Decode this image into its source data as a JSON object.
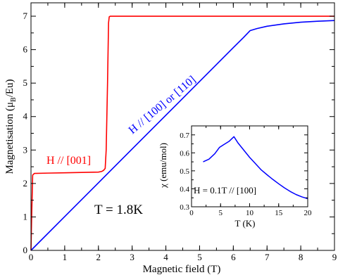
{
  "chart_data": [
    {
      "type": "line",
      "xlabel": "Magnetic field (T)",
      "ylabel_parts": [
        "Magnetisation (μ",
        "B",
        "/Eu)"
      ],
      "xlim": [
        0,
        9
      ],
      "ylim": [
        0,
        7.4
      ],
      "xticks": [
        "0",
        "1",
        "2",
        "3",
        "4",
        "5",
        "6",
        "7",
        "8",
        "9"
      ],
      "yticks": [
        "0",
        "1",
        "2",
        "3",
        "4",
        "5",
        "6",
        "7"
      ],
      "series": [
        {
          "name": "H // [001]",
          "color": "#ff0000",
          "x": [
            0.0,
            0.02,
            0.05,
            0.1,
            0.5,
            1.0,
            1.5,
            2.0,
            2.1,
            2.15,
            2.2,
            2.23,
            2.27,
            2.3,
            2.32,
            2.35,
            2.4,
            3.0,
            4.0,
            5.0,
            6.0,
            7.0,
            8.0,
            9.0
          ],
          "y": [
            0.0,
            1.0,
            2.25,
            2.3,
            2.31,
            2.32,
            2.33,
            2.34,
            2.36,
            2.39,
            2.45,
            3.0,
            5.0,
            6.8,
            6.98,
            7.0,
            7.0,
            7.0,
            7.0,
            7.0,
            7.0,
            7.0,
            7.0,
            7.0
          ]
        },
        {
          "name": "H // [100] or [110]",
          "color": "#0000ff",
          "x": [
            0.0,
            1.0,
            2.0,
            3.0,
            4.0,
            5.0,
            6.0,
            6.3,
            6.5,
            6.7,
            7.0,
            7.5,
            8.0,
            8.5,
            9.0
          ],
          "y": [
            0.0,
            1.01,
            2.02,
            3.03,
            4.04,
            5.05,
            6.06,
            6.36,
            6.57,
            6.63,
            6.7,
            6.77,
            6.82,
            6.85,
            6.87
          ]
        }
      ],
      "annotations": {
        "red_label": "H // [001]",
        "blue_label": "H // [100] or [110]",
        "temperature": "T = 1.8K"
      }
    },
    {
      "type": "line",
      "xlabel": "T (K)",
      "ylabel": "χ (emu/mol)",
      "xlim": [
        0,
        20
      ],
      "ylim": [
        0.3,
        0.75
      ],
      "xticks": [
        "0",
        "5",
        "10",
        "15",
        "20"
      ],
      "yticks": [
        "0.3",
        "0.4",
        "0.5",
        "0.6",
        "0.7"
      ],
      "series": [
        {
          "name": "",
          "color": "#0000ff",
          "x": [
            2.0,
            3.0,
            4.0,
            4.8,
            5.5,
            6.5,
            7.3,
            8.0,
            9.0,
            10.0,
            11.0,
            12.0,
            13.0,
            14.0,
            15.0,
            16.0,
            17.0,
            18.0,
            19.0,
            20.0
          ],
          "y": [
            0.55,
            0.565,
            0.595,
            0.63,
            0.645,
            0.665,
            0.69,
            0.655,
            0.615,
            0.575,
            0.54,
            0.505,
            0.478,
            0.452,
            0.428,
            0.405,
            0.385,
            0.368,
            0.355,
            0.345
          ]
        }
      ],
      "annotations": {
        "condition": "H = 0.1T // [100]"
      }
    }
  ]
}
